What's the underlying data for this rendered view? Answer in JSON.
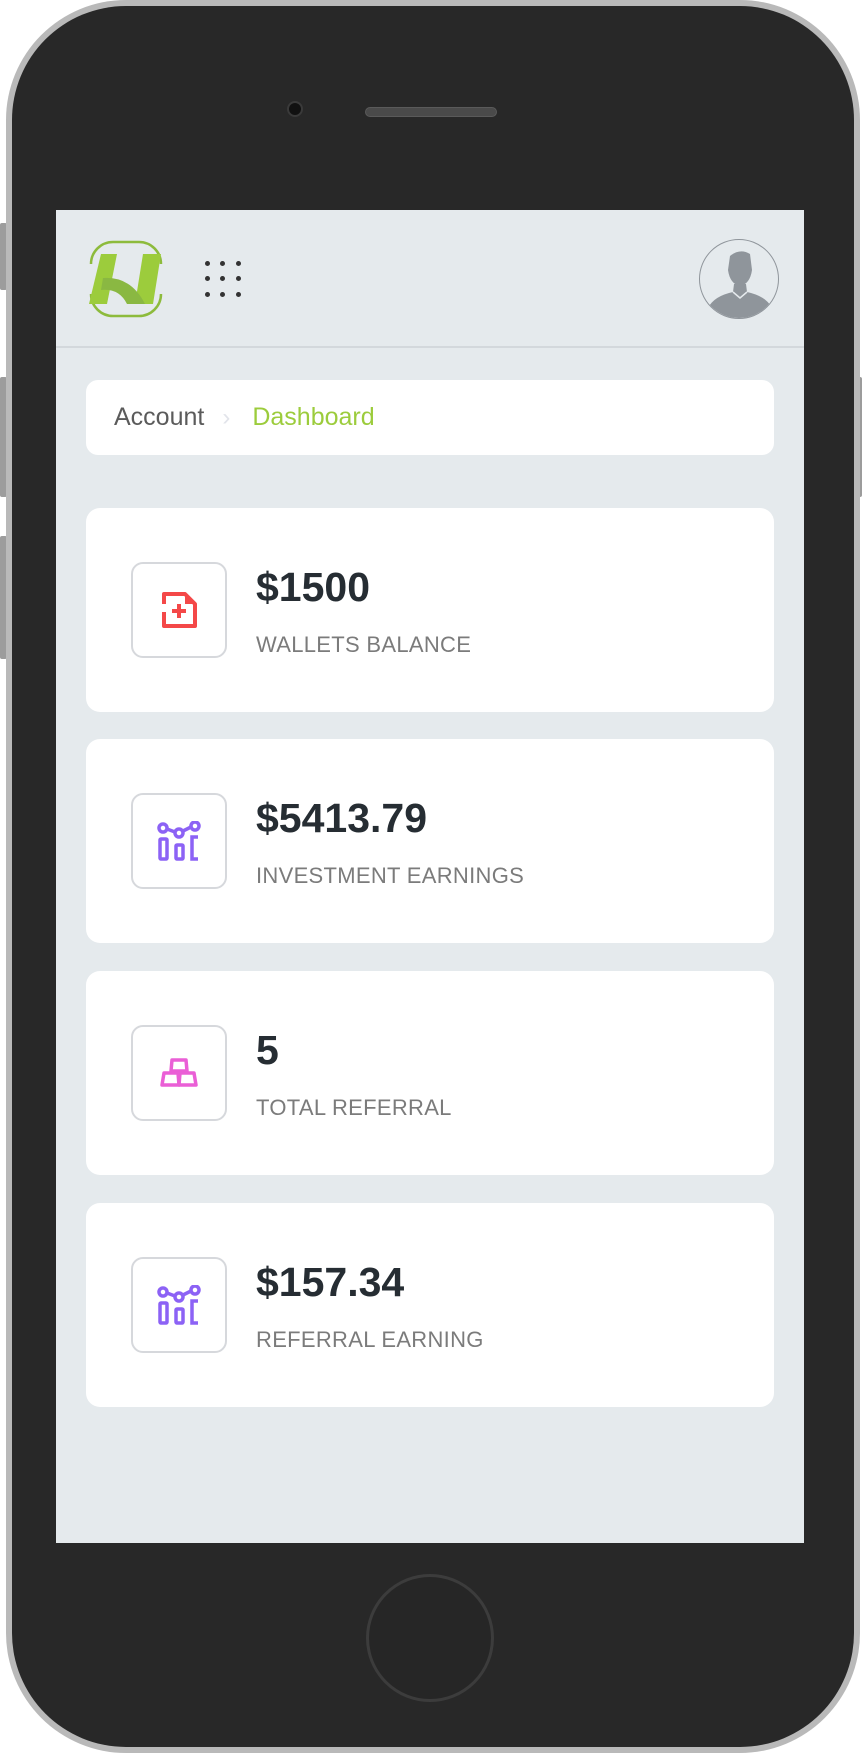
{
  "header": {
    "logo_icon": "h-logo",
    "menu_icon": "grid-dots-icon",
    "avatar_icon": "user-avatar-icon"
  },
  "breadcrumb": {
    "items": [
      "Account",
      "Dashboard"
    ],
    "separator": "›"
  },
  "colors": {
    "accent": "#9ccc3c",
    "background": "#e5eaed",
    "wallet_icon": "#f44848",
    "investment_icon": "#8c62f5",
    "referral_icon": "#ea5fd6"
  },
  "cards": [
    {
      "value": "$1500",
      "label": "WALLETS BALANCE",
      "icon": "file-plus-icon"
    },
    {
      "value": "$5413.79",
      "label": "INVESTMENT EARNINGS",
      "icon": "chart-nodes-icon"
    },
    {
      "value": "5",
      "label": "TOTAL REFERRAL",
      "icon": "stacked-bars-icon"
    },
    {
      "value": "$157.34",
      "label": "REFERRAL EARNING",
      "icon": "chart-nodes-icon"
    }
  ]
}
